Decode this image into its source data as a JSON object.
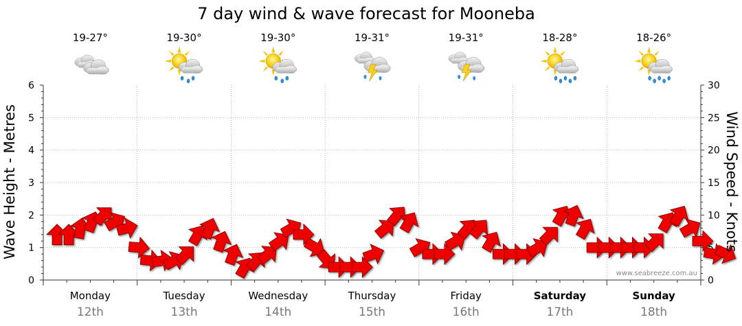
{
  "chart_data": {
    "type": "line",
    "title": "7 day wind & wave forecast for Mooneba",
    "ylabel": "Wave Height - Metres",
    "y2label": "Wind Speed - Knots",
    "ylim": [
      0,
      6
    ],
    "y2lim": [
      0,
      30
    ],
    "yticks": [
      "0",
      "1",
      "2",
      "3",
      "4",
      "5",
      "6"
    ],
    "y2ticks": [
      "0",
      "5",
      "10",
      "15",
      "20",
      "25",
      "30"
    ],
    "credit": "www.seabreeze.com.au",
    "days": [
      {
        "name": "Monday",
        "date": "12th",
        "bold": false,
        "temp": "19-27°",
        "icon": "cloudy-icon"
      },
      {
        "name": "Tuesday",
        "date": "13th",
        "bold": false,
        "temp": "19-30°",
        "icon": "sun-cloud-showers-icon"
      },
      {
        "name": "Wednesday",
        "date": "14th",
        "bold": false,
        "temp": "19-30°",
        "icon": "sun-cloud-showers-icon"
      },
      {
        "name": "Thursday",
        "date": "15th",
        "bold": false,
        "temp": "19-31°",
        "icon": "storm-icon"
      },
      {
        "name": "Friday",
        "date": "16th",
        "bold": false,
        "temp": "19-31°",
        "icon": "storm-icon"
      },
      {
        "name": "Saturday",
        "date": "17th",
        "bold": true,
        "temp": "18-28°",
        "icon": "sun-cloud-rain-icon"
      },
      {
        "name": "Sunday",
        "date": "18th",
        "bold": true,
        "temp": "18-26°",
        "icon": "sun-cloud-rain-icon"
      }
    ],
    "series": [
      {
        "name": "Wind Speed (knots)",
        "unit": "knots",
        "x_hours": [
          0,
          3,
          6,
          9,
          12,
          15,
          18,
          21,
          24,
          27,
          30,
          33,
          36,
          39,
          42,
          45,
          48,
          51,
          54,
          57,
          60,
          63,
          66,
          69,
          72,
          75,
          78,
          81,
          84,
          87,
          90,
          93,
          96,
          99,
          102,
          105,
          108,
          111,
          114,
          117,
          120,
          123,
          126,
          129,
          132,
          135,
          138,
          141,
          144,
          147,
          150,
          153,
          156,
          159,
          162,
          165,
          168,
          171
        ],
        "values": [
          7,
          7,
          8,
          9,
          10,
          9,
          8,
          5,
          3,
          3,
          3,
          4,
          7,
          8,
          6,
          4,
          2,
          3,
          4,
          6,
          8,
          7,
          5,
          3,
          2,
          2,
          2,
          4,
          8,
          10,
          9,
          5,
          4,
          4,
          6,
          8,
          8,
          6,
          4,
          4,
          4,
          5,
          7,
          10,
          10,
          8,
          5,
          5,
          5,
          5,
          5,
          6,
          9,
          10,
          8,
          6,
          4,
          4
        ],
        "directions_deg": [
          0,
          0,
          10,
          20,
          45,
          60,
          75,
          95,
          95,
          80,
          60,
          45,
          30,
          20,
          20,
          20,
          30,
          40,
          50,
          55,
          60,
          90,
          120,
          140,
          90,
          90,
          90,
          70,
          50,
          40,
          30,
          60,
          90,
          90,
          60,
          40,
          40,
          30,
          90,
          90,
          90,
          60,
          45,
          30,
          20,
          30,
          90,
          90,
          90,
          90,
          90,
          45,
          30,
          30,
          60,
          90,
          100,
          115
        ]
      }
    ]
  }
}
